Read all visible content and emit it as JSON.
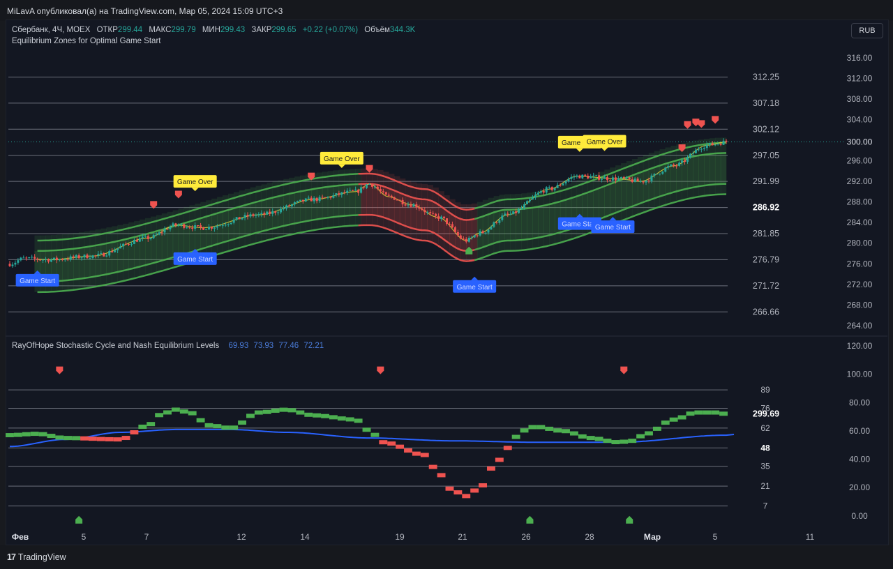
{
  "header": {
    "publisher_line": "MiLavA опубликовал(а) на TradingView.com, Мар 05, 2024 15:09 UTC+3"
  },
  "currency_button": "RUB",
  "footer": {
    "logo_mark": "17",
    "brand": "TradingView"
  },
  "colors": {
    "background": "#131722",
    "bull_candle": "#26a69a",
    "bear_candle": "#ef5350",
    "stoch_bull": "#4caf50",
    "stoch_bear": "#ef5350",
    "slow_line": "#2962ff",
    "band_green": "#4caf50",
    "band_red": "#ef5350",
    "mid_yellow": "#ffeb3b",
    "game_over_label": "#ffeb3b",
    "game_start_label": "#2962ff"
  },
  "main_legend": {
    "symbol": "Сбербанк, 4Ч, MOEX",
    "open_label": "ОТКР",
    "open": "299.44",
    "high_label": "МАКС",
    "high": "299.79",
    "low_label": "МИН",
    "low": "299.43",
    "close_label": "ЗАКР",
    "close": "299.65",
    "change": "+0.22 (+0.07%)",
    "volume_label": "Объём",
    "volume": "344.3K",
    "indicator": "Equilibrium Zones for Optimal Game Start"
  },
  "sub_legend": {
    "name": "RayOfHope Stochastic Cycle and Nash Equilibrium Levels",
    "values": [
      "69.93",
      "73.93",
      "77.46",
      "72.21"
    ]
  },
  "chart_data": [
    {
      "type": "candlestick",
      "title": "Сбербанк, 4Ч, MOEX",
      "x_tick_labels": [
        "Фев",
        "5",
        "7",
        "12",
        "14",
        "19",
        "21",
        "26",
        "28",
        "Мар",
        "5",
        "11"
      ],
      "y_axis_ticks": [
        264,
        268,
        272,
        276,
        280,
        284,
        288,
        292,
        296,
        300,
        304,
        308,
        312,
        316
      ],
      "y_axis_tick_labels": [
        "264.00",
        "268.00",
        "272.00",
        "276.00",
        "280.00",
        "284.00",
        "288.00",
        "292.00",
        "296.00",
        "300.00",
        "304.00",
        "308.00",
        "312.00",
        "316.00"
      ],
      "ylim": [
        262.5,
        318
      ],
      "last_price": 299.65,
      "horizontal_levels": [
        {
          "value": 312.25,
          "label": "312.25"
        },
        {
          "value": 307.18,
          "label": "307.18"
        },
        {
          "value": 302.12,
          "label": "302.12"
        },
        {
          "value": 297.05,
          "label": "297.05"
        },
        {
          "value": 291.99,
          "label": "291.99"
        },
        {
          "value": 286.92,
          "label": "286.92",
          "highlight": true
        },
        {
          "value": 281.85,
          "label": "281.85"
        },
        {
          "value": 276.79,
          "label": "276.79"
        },
        {
          "value": 271.72,
          "label": "271.72"
        },
        {
          "value": 266.66,
          "label": "266.66"
        }
      ],
      "close_path_keypoints": [
        [
          0,
          276.0
        ],
        [
          5,
          277.0
        ],
        [
          15,
          276.8
        ],
        [
          30,
          277.5
        ],
        [
          50,
          281.0
        ],
        [
          60,
          283.5
        ],
        [
          70,
          283.0
        ],
        [
          90,
          285.5
        ],
        [
          110,
          288.5
        ],
        [
          125,
          290.0
        ],
        [
          130,
          291.5
        ],
        [
          137,
          289.0
        ],
        [
          145,
          287.5
        ],
        [
          155,
          285.0
        ],
        [
          165,
          280.5
        ],
        [
          170,
          282.0
        ],
        [
          180,
          285.5
        ],
        [
          195,
          290.5
        ],
        [
          205,
          293.0
        ],
        [
          220,
          292.5
        ],
        [
          228,
          292.0
        ],
        [
          240,
          295.0
        ],
        [
          252,
          299.0
        ],
        [
          259,
          299.65
        ]
      ],
      "candle_count": 260,
      "equilibrium_bands": {
        "mid_keypoints": [
          [
            10,
            276.0
          ],
          [
            130,
            289.0
          ],
          [
            150,
            286.0
          ],
          [
            165,
            282.0
          ],
          [
            180,
            284.0
          ],
          [
            259,
            295.0
          ]
        ],
        "bear_segment_bars": [
          127,
          168
        ],
        "offsets": [
          -5.5,
          -3.5,
          2.5,
          4.5
        ]
      },
      "signal_labels": [
        {
          "text": "Game Start",
          "kind": "start",
          "bar": 10,
          "price": 272.8
        },
        {
          "text": "Game Over",
          "kind": "over",
          "bar": 67,
          "price": 292.0
        },
        {
          "text": "Game Start",
          "kind": "start",
          "bar": 67,
          "price": 277.0
        },
        {
          "text": "Game Over",
          "kind": "over",
          "bar": 120,
          "price": 296.5
        },
        {
          "text": "Game Start",
          "kind": "start",
          "bar": 168,
          "price": 271.6
        },
        {
          "text": "Game Over",
          "kind": "over",
          "bar": 206,
          "price": 299.6
        },
        {
          "text": "Game Over",
          "kind": "over",
          "bar": 215,
          "price": 299.8
        },
        {
          "text": "Game Start",
          "kind": "start",
          "bar": 206,
          "price": 283.8
        },
        {
          "text": "Game Start",
          "kind": "start",
          "bar": 218,
          "price": 283.2
        }
      ],
      "markers": [
        {
          "bar": 52,
          "price": 287.5,
          "kind": "sell"
        },
        {
          "bar": 61,
          "price": 289.5,
          "kind": "sell"
        },
        {
          "bar": 109,
          "price": 293.0,
          "kind": "sell"
        },
        {
          "bar": 130,
          "price": 294.5,
          "kind": "sell"
        },
        {
          "bar": 166,
          "price": 278.5,
          "kind": "buy"
        },
        {
          "bar": 243,
          "price": 298.5,
          "kind": "sell"
        },
        {
          "bar": 245,
          "price": 303.0,
          "kind": "sell"
        },
        {
          "bar": 248,
          "price": 303.5,
          "kind": "sell"
        },
        {
          "bar": 250,
          "price": 303.2,
          "kind": "sell"
        },
        {
          "bar": 255,
          "price": 304.0,
          "kind": "sell"
        }
      ]
    },
    {
      "type": "line",
      "title": "RayOfHope Stochastic Cycle and Nash Equilibrium Levels",
      "y_axis_ticks": [
        0,
        20,
        40,
        60,
        80,
        100,
        120
      ],
      "y_axis_tick_labels": [
        "0.00",
        "20.00",
        "40.00",
        "60.00",
        "80.00",
        "100.00",
        "120.00"
      ],
      "ylim": [
        -6,
        124
      ],
      "levels": [
        {
          "value": 89,
          "label": "89"
        },
        {
          "value": 76,
          "label": "76"
        },
        {
          "value": 62,
          "label": "62"
        },
        {
          "value": 48,
          "label": "48",
          "highlight": true
        },
        {
          "value": 35,
          "label": "35"
        },
        {
          "value": 21,
          "label": "21"
        },
        {
          "value": 7,
          "label": "7"
        }
      ],
      "price_badge": "299.69",
      "series": [
        {
          "name": "",
          "style": "step",
          "keypoints": [
            [
              0,
              57
            ],
            [
              10,
              58
            ],
            [
              20,
              55
            ],
            [
              40,
              54
            ],
            [
              50,
              64
            ],
            [
              55,
              72
            ],
            [
              60,
              75
            ],
            [
              65,
              73
            ],
            [
              72,
              64
            ],
            [
              80,
              62
            ],
            [
              90,
              73
            ],
            [
              100,
              75
            ],
            [
              110,
              71
            ],
            [
              125,
              68
            ],
            [
              130,
              60
            ],
            [
              135,
              52
            ],
            [
              150,
              43
            ],
            [
              155,
              30
            ],
            [
              160,
              18
            ],
            [
              165,
              14
            ],
            [
              170,
              20
            ],
            [
              175,
              35
            ],
            [
              180,
              48
            ],
            [
              185,
              60
            ],
            [
              190,
              63
            ],
            [
              200,
              60
            ],
            [
              210,
              55
            ],
            [
              220,
              52
            ],
            [
              225,
              53
            ],
            [
              230,
              58
            ],
            [
              240,
              68
            ],
            [
              248,
              73
            ],
            [
              255,
              73
            ],
            [
              259,
              72
            ]
          ]
        },
        {
          "name": "",
          "style": "line",
          "keypoints": [
            [
              0,
              49
            ],
            [
              20,
              54
            ],
            [
              40,
              59
            ],
            [
              60,
              61
            ],
            [
              80,
              61
            ],
            [
              100,
              59
            ],
            [
              130,
              55
            ],
            [
              160,
              53
            ],
            [
              190,
              52
            ],
            [
              220,
              52
            ],
            [
              259,
              57
            ]
          ]
        }
      ],
      "markers": [
        {
          "bar": 18,
          "value": 103,
          "kind": "sell"
        },
        {
          "bar": 134,
          "value": 103,
          "kind": "sell"
        },
        {
          "bar": 222,
          "value": 103,
          "kind": "sell"
        },
        {
          "bar": 25,
          "value": -3,
          "kind": "buy"
        },
        {
          "bar": 188,
          "value": -3,
          "kind": "buy"
        },
        {
          "bar": 224,
          "value": -3,
          "kind": "buy"
        }
      ]
    }
  ]
}
